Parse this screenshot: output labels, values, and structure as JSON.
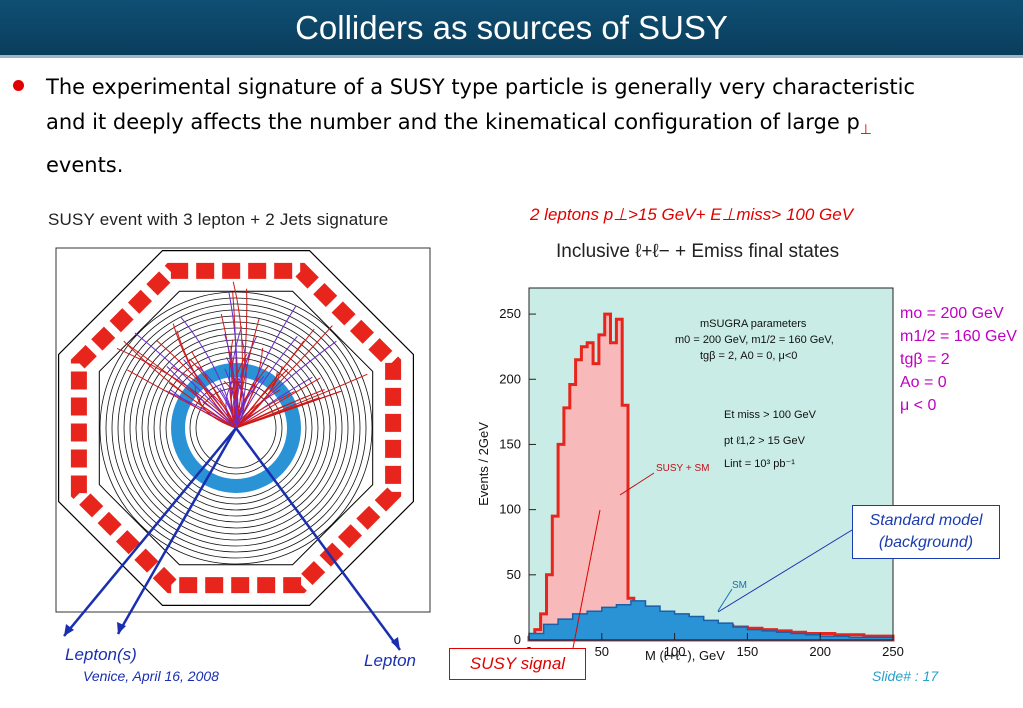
{
  "slide": {
    "title": "Colliders as sources of SUSY",
    "bullet": {
      "text_before": "The experimental signature of a SUSY type particle is generally very characteristic and it deeply affects the number and the kinematical configuration of large p",
      "subscript": "⊥",
      "text_after": " events."
    },
    "footer_date": "Venice, April 16, 2008",
    "footer_slide": "Slide# : 17"
  },
  "detector_figure": {
    "title": "SUSY event with 3 lepton + 2 Jets signature",
    "labels": {
      "leptons_left": "Lepton(s)",
      "lepton_right": "Lepton"
    }
  },
  "annotations": {
    "cut_label": "2 leptons p⊥>15 GeV+ E⊥miss> 100 GeV",
    "params": [
      "mo = 200 GeV",
      "m1/2 = 160 GeV",
      "tgβ = 2",
      "Ao = 0",
      "μ < 0"
    ],
    "sm_box": [
      "Standard model",
      "(background)"
    ],
    "susy_box": "SUSY signal"
  },
  "colors": {
    "susy": "#e8251c",
    "sm": "#2a93d6",
    "plot_bg": "#c9ece6",
    "susy_fill": "#f7b9b9",
    "accent_blue": "#1a2fb0",
    "title_bar": "#0f4f73"
  },
  "chart_data": {
    "type": "area",
    "title": "Inclusive ℓ+ℓ− + Emiss final states",
    "xlabel": "M (ℓ+ℓ−), GeV",
    "ylabel": "Events / 2GeV",
    "xlim": [
      0,
      250
    ],
    "ylim": [
      0,
      270
    ],
    "xticks": [
      0,
      50,
      100,
      150,
      200,
      250
    ],
    "yticks": [
      0,
      50,
      100,
      150,
      200,
      250
    ],
    "inset_text": {
      "params_header": "mSUGRA parameters",
      "params_line1": "m0 = 200 GeV, m1/2 = 160 GeV,",
      "params_line2": "tgβ = 2,  A0 = 0,  μ<0",
      "cut1": "Et miss > 100 GeV",
      "cut2": "pt ℓ1,2 > 15 GeV",
      "cut3": "Lint = 10³ pb⁻¹",
      "susy_label": "SUSY + SM",
      "sm_label": "SM"
    },
    "series": [
      {
        "name": "SUSY + SM",
        "x": [
          0,
          4,
          8,
          12,
          16,
          20,
          24,
          28,
          32,
          36,
          40,
          44,
          48,
          52,
          56,
          60,
          64,
          68,
          72,
          76,
          80,
          90,
          100,
          110,
          120,
          130,
          140,
          150,
          160,
          170,
          180,
          190,
          200,
          210,
          220,
          230,
          240,
          250
        ],
        "values": [
          2,
          8,
          20,
          50,
          95,
          150,
          178,
          196,
          215,
          225,
          228,
          212,
          234,
          250,
          228,
          246,
          180,
          32,
          28,
          24,
          20,
          17,
          14,
          12,
          11,
          11,
          10,
          9,
          8,
          7,
          6,
          5,
          5,
          4,
          4,
          3,
          3,
          2
        ]
      },
      {
        "name": "SM",
        "x": [
          0,
          10,
          20,
          30,
          40,
          50,
          60,
          70,
          80,
          90,
          100,
          110,
          120,
          130,
          140,
          150,
          160,
          170,
          180,
          190,
          200,
          210,
          220,
          230,
          240,
          250
        ],
        "values": [
          5,
          12,
          16,
          20,
          22,
          25,
          27,
          30,
          26,
          22,
          20,
          18,
          15,
          13,
          10,
          8,
          7,
          6,
          5,
          4,
          3,
          3,
          2,
          2,
          2,
          1
        ]
      }
    ]
  }
}
